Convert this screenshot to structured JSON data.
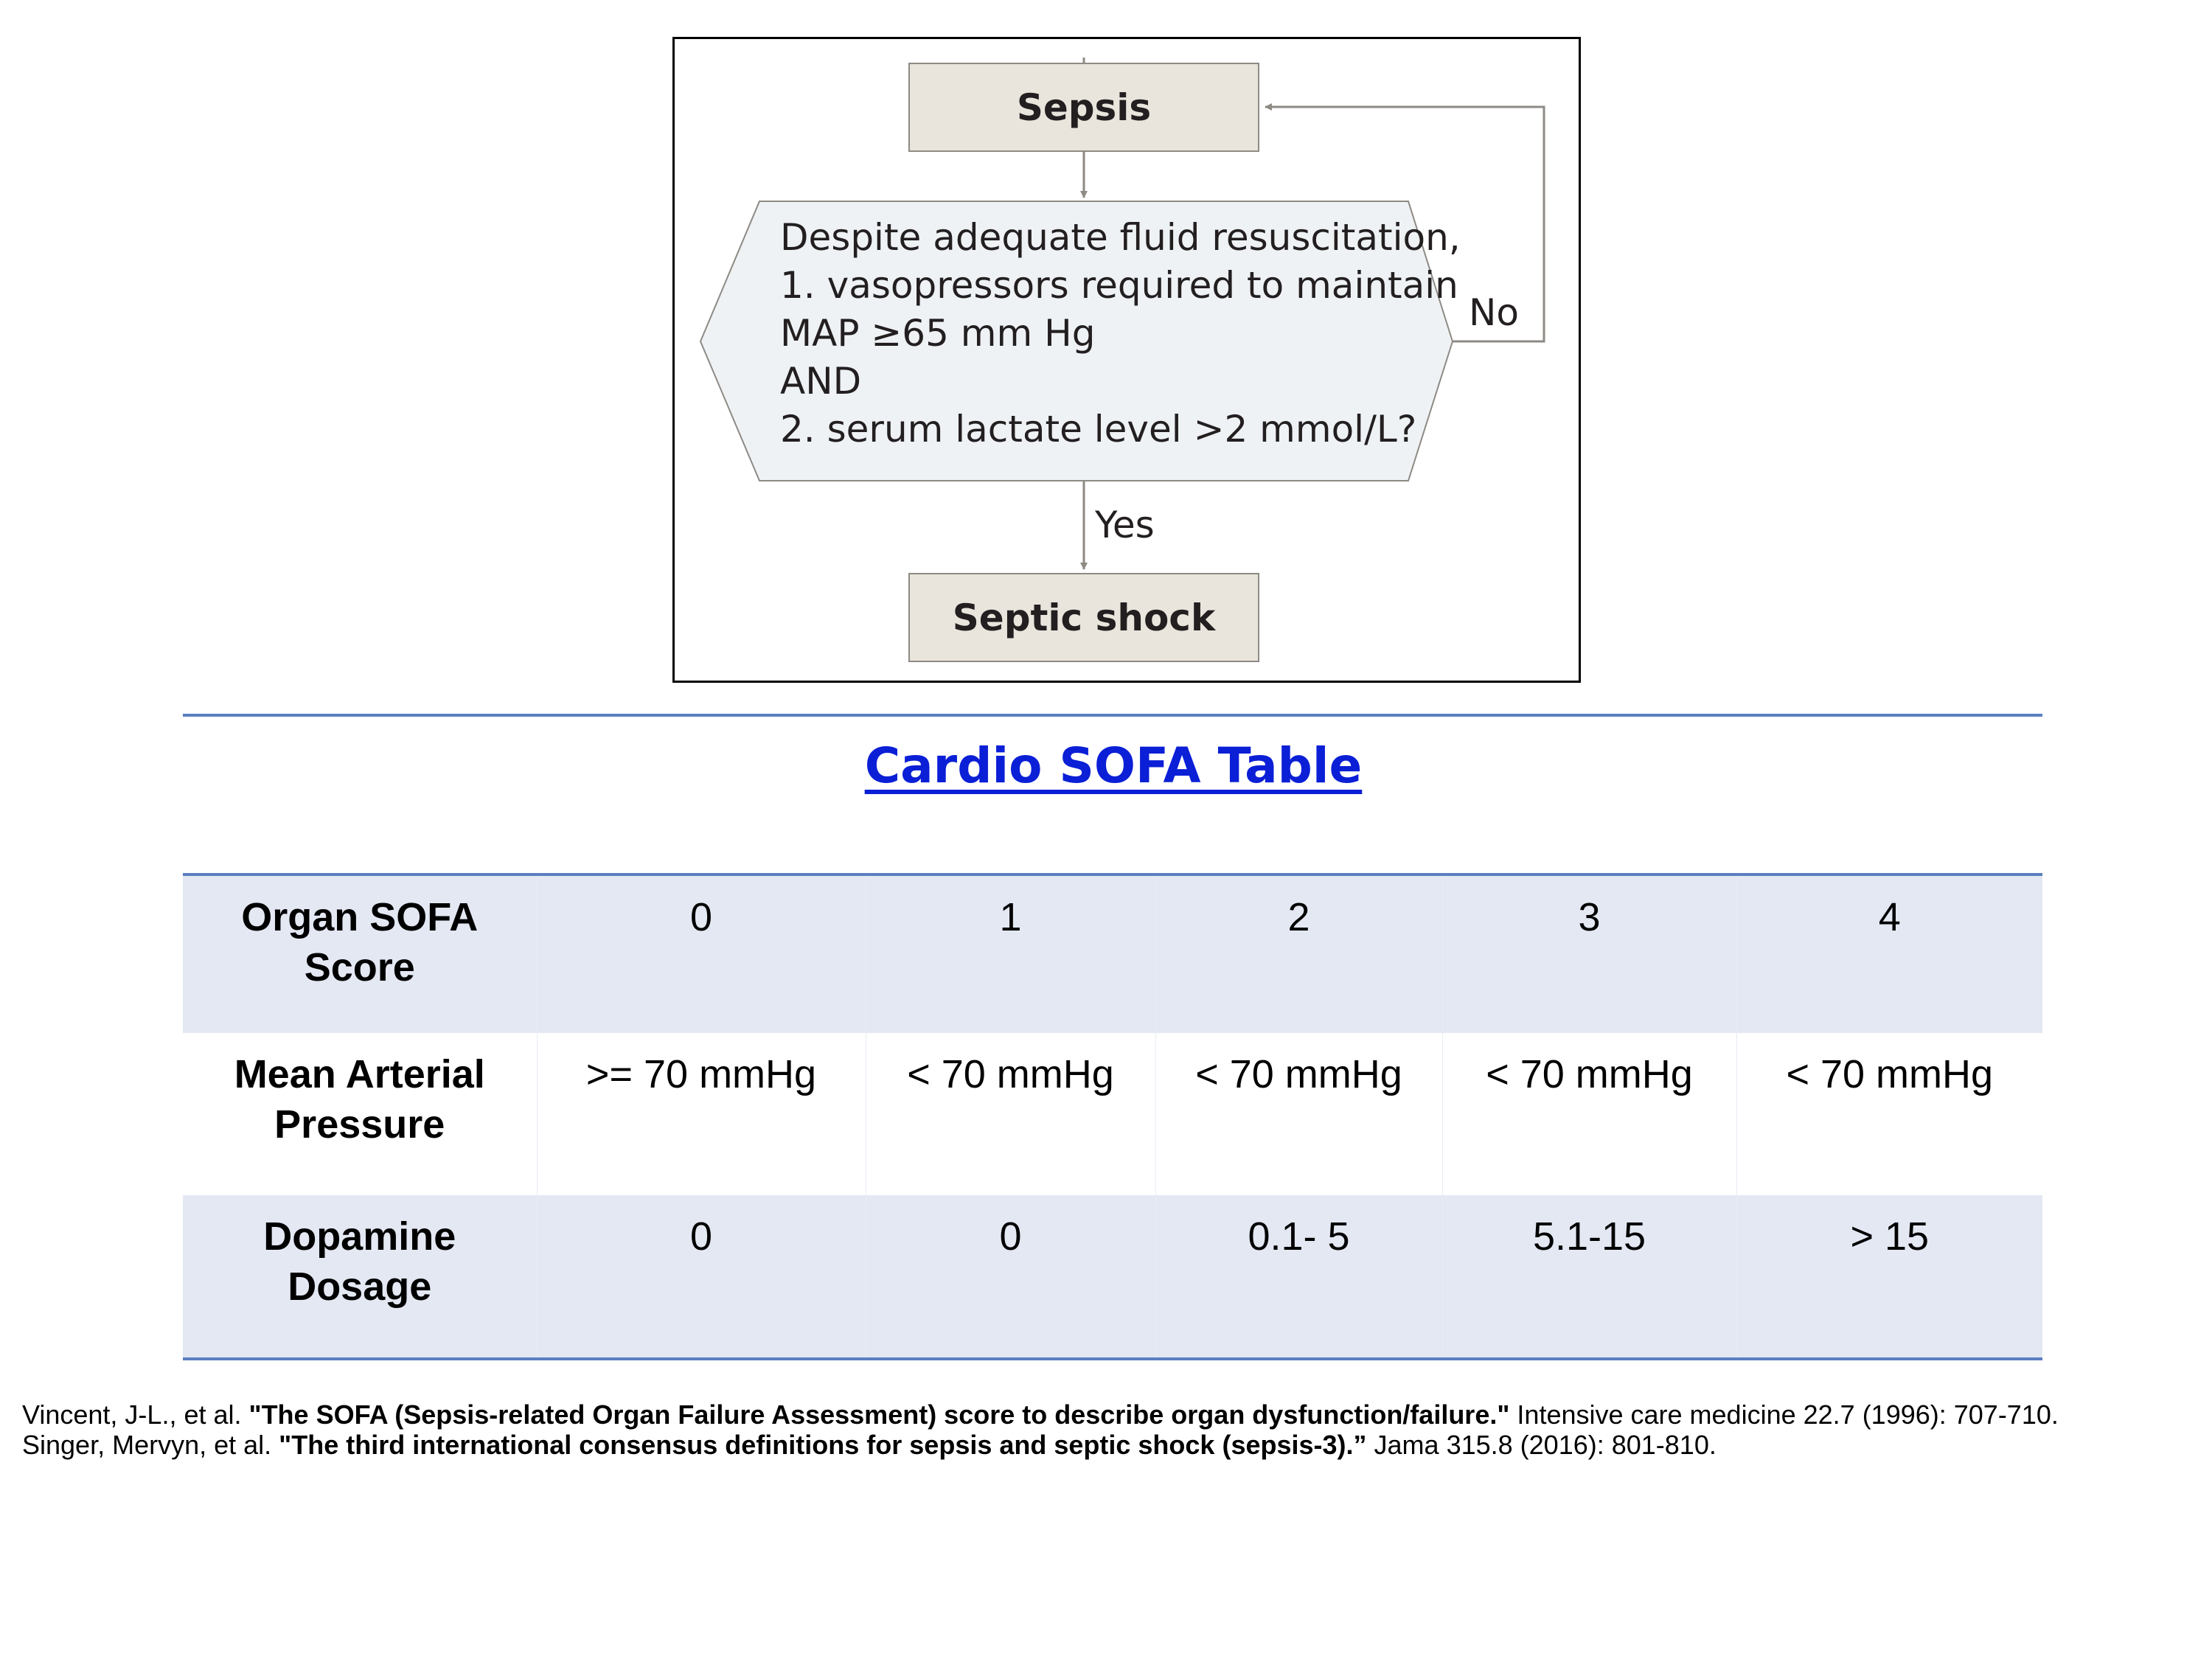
{
  "flowchart": {
    "start_box": "Sepsis",
    "decision_lines": [
      "Despite adequate fluid resuscitation,",
      "1. vasopressors required to maintain",
      "MAP ≥65 mm Hg",
      "AND",
      "2. serum lactate level >2 mmol/L?"
    ],
    "no_label": "No",
    "yes_label": "Yes",
    "end_box": "Septic shock"
  },
  "table_title": "Cardio SOFA Table",
  "sofa_table": {
    "header": {
      "label": "Organ SOFA Score",
      "scores": [
        "0",
        "1",
        "2",
        "3",
        "4"
      ]
    },
    "rows": [
      {
        "label": "Mean Arterial Pressure",
        "values": [
          ">= 70 mmHg",
          "< 70 mmHg",
          "< 70 mmHg",
          "< 70 mmHg",
          "< 70 mmHg"
        ]
      },
      {
        "label": "Dopamine Dosage",
        "values": [
          "0",
          "0",
          "0.1- 5",
          "5.1-15",
          "> 15"
        ]
      }
    ]
  },
  "references": [
    {
      "authors": "Vincent, J-L., et al. ",
      "title": "\"The SOFA (Sepsis-related Organ Failure Assessment) score to describe organ dysfunction/failure.\"",
      "source": " Intensive care medicine 22.7 (1996): 707-710."
    },
    {
      "authors": "Singer, Mervyn, et al. ",
      "title": "\"The third international consensus definitions for sepsis and septic shock (sepsis-3).”",
      "source": " Jama 315.8 (2016): 801-810."
    }
  ],
  "colors": {
    "flow_box_fill": "#e9e5dd",
    "decision_fill": "#eff2f5",
    "table_band": "#e3e8f3",
    "table_rule": "#5b7fc0",
    "title_link": "#0b1fd6"
  }
}
